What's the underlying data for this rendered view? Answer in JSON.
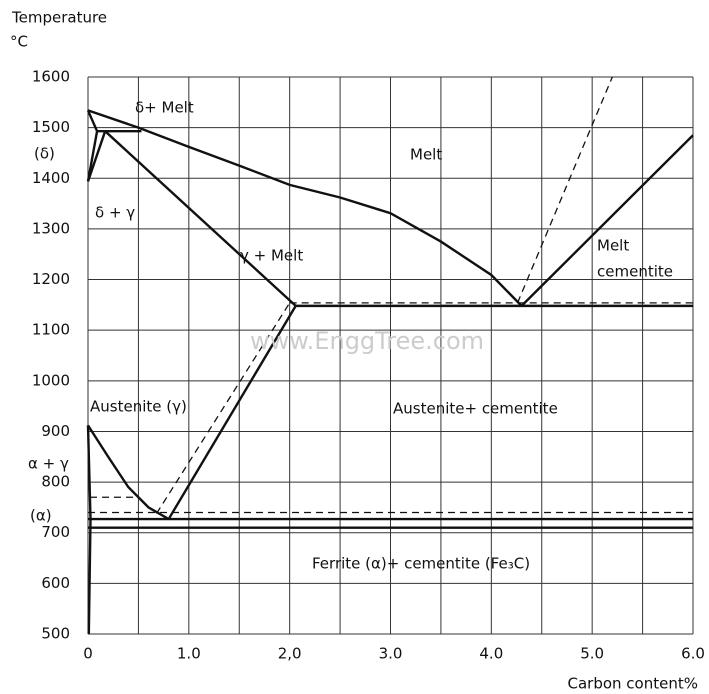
{
  "chart_data": {
    "type": "line",
    "ylabel": "Temperature",
    "yunit": "°C",
    "xlabel": "Carbon content%",
    "xlim": [
      0,
      6
    ],
    "ylim": [
      500,
      1600
    ],
    "grid": true,
    "xticks": [
      0,
      {
        "value": 0.5,
        "label": null
      },
      {
        "value": 1,
        "label": "1.0"
      },
      {
        "value": 1.5,
        "label": null
      },
      {
        "value": 2,
        "label": "2,0"
      },
      {
        "value": 2.5,
        "label": null
      },
      {
        "value": 3,
        "label": "3.0"
      },
      {
        "value": 3.5,
        "label": null
      },
      {
        "value": 4,
        "label": "4.0"
      },
      {
        "value": 4.5,
        "label": null
      },
      {
        "value": 5,
        "label": "5.0"
      },
      {
        "value": 5.5,
        "label": null
      },
      {
        "value": 6,
        "label": "6.0"
      }
    ],
    "yticks": [
      500,
      600,
      700,
      800,
      900,
      1000,
      1100,
      1200,
      1300,
      1400,
      1500,
      1600
    ],
    "series": [
      {
        "x": [
          0,
          0.5,
          1,
          1.5,
          2,
          2.5,
          3,
          3.5,
          4,
          4.3
        ],
        "values": [
          1534,
          1500,
          1462,
          1425,
          1387,
          1362,
          1331,
          1275,
          1209,
          1148
        ],
        "color": "#111",
        "style": "solid"
      },
      {
        "x": [
          4.3,
          6
        ],
        "values": [
          1148,
          1485
        ],
        "color": "#111",
        "style": "solid"
      },
      {
        "x": [
          0.17,
          2.06
        ],
        "values": [
          1493,
          1148
        ],
        "color": "#111",
        "style": "solid"
      },
      {
        "x": [
          2.06,
          6
        ],
        "values": [
          1148,
          1148
        ],
        "color": "#111",
        "style": "solid"
      },
      {
        "x": [
          2,
          6
        ],
        "values": [
          1154,
          1154
        ],
        "color": "#111",
        "style": "dashed"
      },
      {
        "x": [
          0.8,
          2.06
        ],
        "values": [
          727,
          1148
        ],
        "color": "#111",
        "style": "solid"
      },
      {
        "x": [
          0.68,
          2
        ],
        "values": [
          738,
          1154
        ],
        "color": "#111",
        "style": "dashed"
      },
      {
        "x": [
          4.26,
          5.2
        ],
        "values": [
          1154,
          1600
        ],
        "color": "#111",
        "style": "dashed"
      },
      {
        "x": [
          0,
          0.2,
          0.4,
          0.6,
          0.8
        ],
        "values": [
          912,
          850,
          790,
          750,
          727
        ],
        "color": "#111",
        "style": "solid"
      },
      {
        "x": [
          0,
          6
        ],
        "values": [
          727,
          727
        ],
        "color": "#111",
        "style": "solid"
      },
      {
        "x": [
          0,
          6
        ],
        "values": [
          710,
          710
        ],
        "color": "#111",
        "style": "solid"
      },
      {
        "x": [
          0,
          6
        ],
        "values": [
          740,
          740
        ],
        "color": "#111",
        "style": "dashed"
      },
      {
        "x": [
          0.02,
          0.5
        ],
        "values": [
          770,
          770
        ],
        "color": "#111",
        "style": "dashed"
      },
      {
        "x": [
          0,
          0.09
        ],
        "values": [
          1534,
          1493
        ],
        "color": "#111",
        "style": "solid"
      },
      {
        "x": [
          0.09,
          0.53
        ],
        "values": [
          1493,
          1493
        ],
        "color": "#111",
        "style": "solid"
      },
      {
        "x": [
          0,
          0.09
        ],
        "values": [
          1394,
          1493
        ],
        "color": "#111",
        "style": "solid"
      },
      {
        "x": [
          0,
          0.17
        ],
        "values": [
          1394,
          1493
        ],
        "color": "#111",
        "style": "solid"
      },
      {
        "x": [
          0,
          0.025,
          0.008
        ],
        "values": [
          912,
          727,
          500
        ],
        "color": "#111",
        "style": "solid"
      }
    ],
    "annotations": [
      "δ+ Melt",
      "(δ)",
      "δ + γ",
      "Melt",
      "γ + Melt",
      "Melt",
      "cementite",
      "Austenite (γ)",
      "Austenite+ cementite",
      "α + γ",
      "(α)",
      "Ferrite   (α)+ cementite  (Fe₃C)",
      "www.EnggTree.com"
    ]
  }
}
